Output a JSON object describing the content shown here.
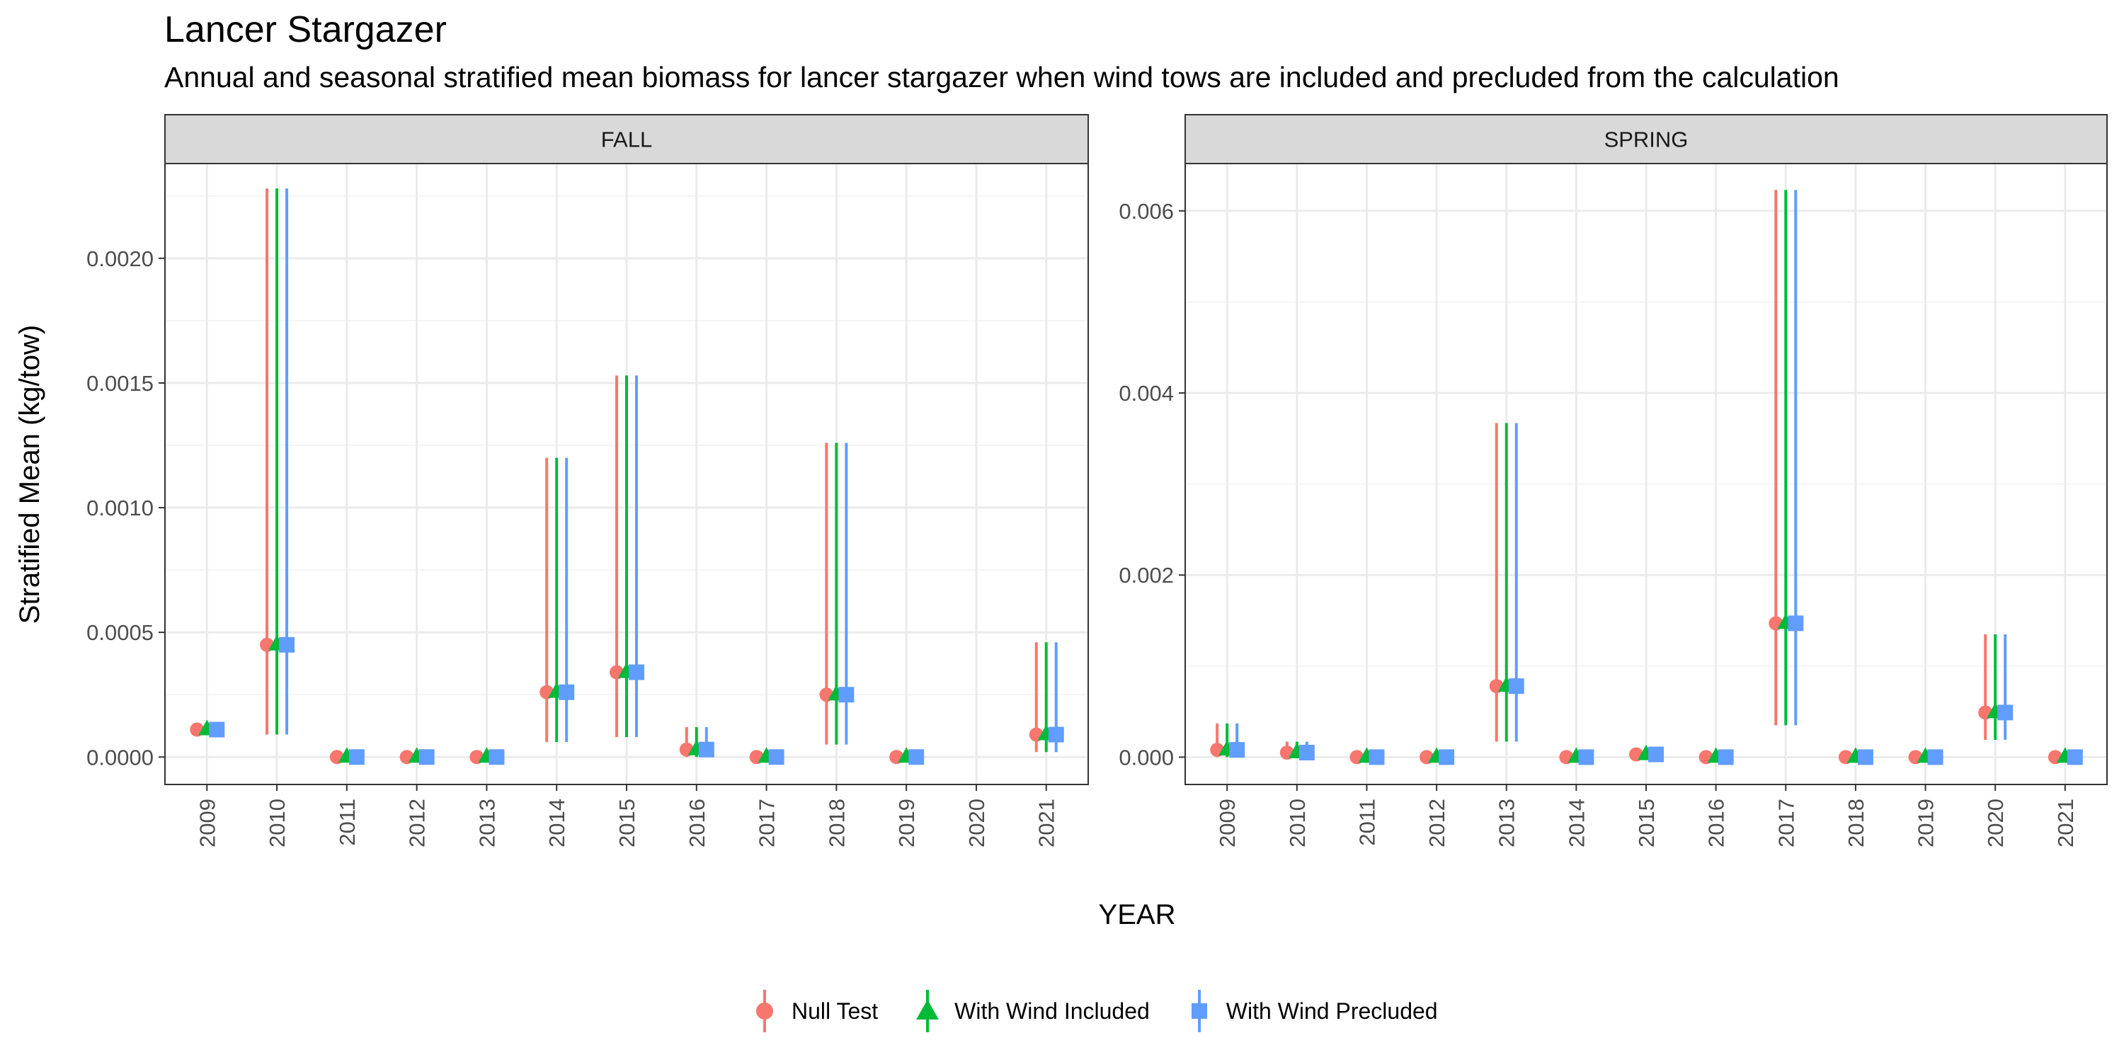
{
  "chart_data": {
    "type": "scatter",
    "title": "Lancer Stargazer",
    "subtitle": "Annual and seasonal stratified mean biomass for lancer stargazer when wind tows are included and precluded from the calculation",
    "xlabel": "YEAR",
    "ylabel": "Stratified Mean (kg/tow)",
    "grid": true,
    "legend_position": "bottom",
    "series_names": [
      "Null Test",
      "With Wind Included",
      "With Wind Precluded"
    ],
    "series_colors": [
      "#F8766D",
      "#00BA38",
      "#619CFF"
    ],
    "series_shapes": [
      "circle",
      "triangle",
      "square"
    ],
    "panels": [
      {
        "name": "FALL",
        "x": [
          "2009",
          "2010",
          "2011",
          "2012",
          "2013",
          "2014",
          "2015",
          "2016",
          "2017",
          "2018",
          "2019",
          "2020",
          "2021"
        ],
        "ylim": [
          -0.00011,
          0.00238
        ],
        "yticks": [
          0.0,
          0.0005,
          0.001,
          0.0015,
          0.002
        ],
        "ytick_labels": [
          "0.0000",
          "0.0005",
          "0.0010",
          "0.0015",
          "0.0020"
        ],
        "points": [
          {
            "x": "2009",
            "mean": 0.00011,
            "lo": null,
            "hi": null
          },
          {
            "x": "2010",
            "mean": 0.00045,
            "lo": 9e-05,
            "hi": 0.00228
          },
          {
            "x": "2011",
            "mean": 0.0,
            "lo": null,
            "hi": null
          },
          {
            "x": "2012",
            "mean": 0.0,
            "lo": null,
            "hi": null
          },
          {
            "x": "2013",
            "mean": 0.0,
            "lo": null,
            "hi": null
          },
          {
            "x": "2014",
            "mean": 0.00026,
            "lo": 6e-05,
            "hi": 0.0012
          },
          {
            "x": "2015",
            "mean": 0.00034,
            "lo": 8e-05,
            "hi": 0.00153
          },
          {
            "x": "2016",
            "mean": 3e-05,
            "lo": 0.0,
            "hi": 0.00012
          },
          {
            "x": "2017",
            "mean": 0.0,
            "lo": null,
            "hi": null
          },
          {
            "x": "2018",
            "mean": 0.00025,
            "lo": 5e-05,
            "hi": 0.00126
          },
          {
            "x": "2019",
            "mean": 0.0,
            "lo": null,
            "hi": null
          },
          {
            "x": "2021",
            "mean": 9e-05,
            "lo": 2e-05,
            "hi": 0.00046
          }
        ]
      },
      {
        "name": "SPRING",
        "x": [
          "2009",
          "2010",
          "2011",
          "2012",
          "2013",
          "2014",
          "2015",
          "2016",
          "2017",
          "2018",
          "2019",
          "2020",
          "2021"
        ],
        "ylim": [
          -0.0003,
          0.00652
        ],
        "yticks": [
          0.0,
          0.002,
          0.004,
          0.006
        ],
        "ytick_labels": [
          "0.000",
          "0.002",
          "0.004",
          "0.006"
        ],
        "points": [
          {
            "x": "2009",
            "mean": 8e-05,
            "lo": 0.0,
            "hi": 0.00037
          },
          {
            "x": "2010",
            "mean": 5e-05,
            "lo": 0.0,
            "hi": 0.00017
          },
          {
            "x": "2011",
            "mean": 0.0,
            "lo": null,
            "hi": null
          },
          {
            "x": "2012",
            "mean": 0.0,
            "lo": null,
            "hi": null
          },
          {
            "x": "2013",
            "mean": 0.00078,
            "lo": 0.00017,
            "hi": 0.00367
          },
          {
            "x": "2014",
            "mean": 0.0,
            "lo": null,
            "hi": null
          },
          {
            "x": "2015",
            "mean": 3e-05,
            "lo": null,
            "hi": null
          },
          {
            "x": "2016",
            "mean": 0.0,
            "lo": null,
            "hi": null
          },
          {
            "x": "2017",
            "mean": 0.00147,
            "lo": 0.00035,
            "hi": 0.00623
          },
          {
            "x": "2018",
            "mean": 0.0,
            "lo": null,
            "hi": null
          },
          {
            "x": "2019",
            "mean": 0.0,
            "lo": null,
            "hi": null
          },
          {
            "x": "2020",
            "mean": 0.00049,
            "lo": 0.00019,
            "hi": 0.00135
          },
          {
            "x": "2021",
            "mean": 0.0,
            "lo": null,
            "hi": null
          }
        ]
      }
    ]
  }
}
